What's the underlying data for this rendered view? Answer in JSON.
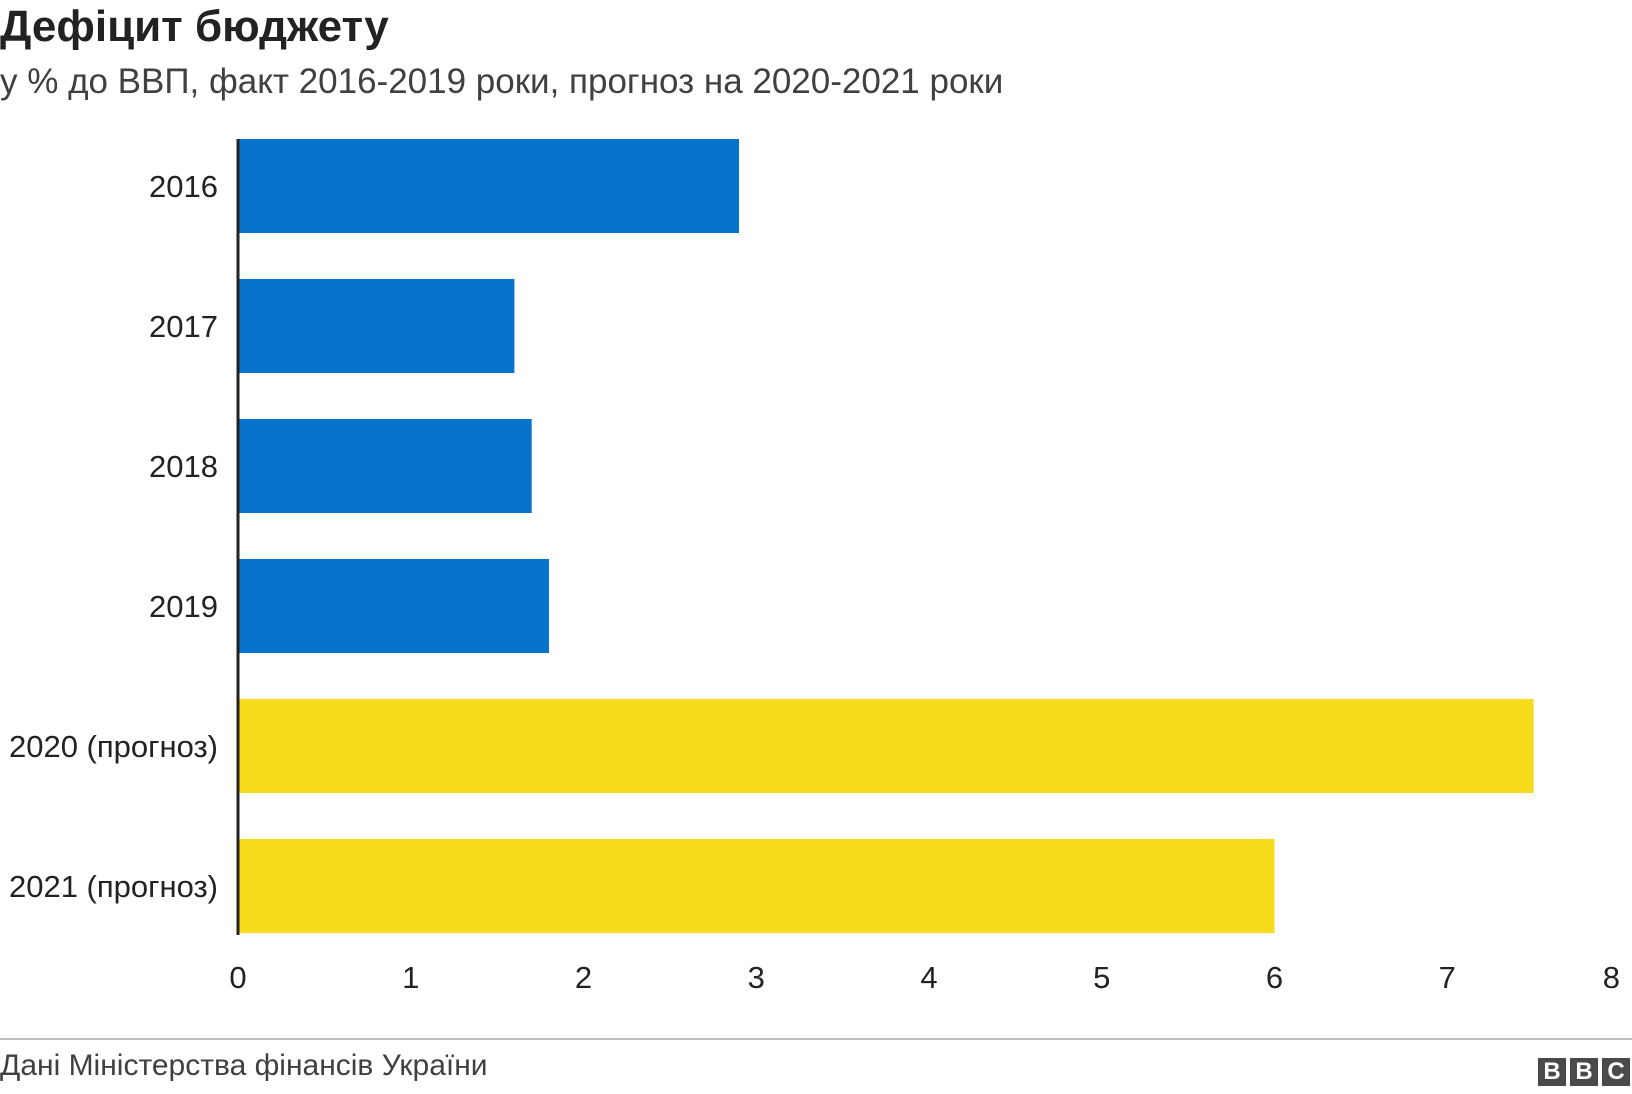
{
  "chart_data": {
    "type": "bar",
    "orientation": "horizontal",
    "title": "Дефіцит бюджету",
    "subtitle": "у % до ВВП, факт 2016-2019 роки, прогноз на 2020-2021 роки",
    "categories": [
      "2016",
      "2017",
      "2018",
      "2019",
      "2020 (прогноз)",
      "2021 (прогноз)"
    ],
    "values": [
      2.9,
      1.6,
      1.7,
      1.8,
      7.5,
      6.0
    ],
    "bar_colors": [
      "#0672c9",
      "#0672c9",
      "#0672c9",
      "#0672c9",
      "#f6db1a",
      "#f6db1a"
    ],
    "xlim": [
      0,
      8
    ],
    "xticks": [
      "0",
      "1",
      "2",
      "3",
      "4",
      "5",
      "6",
      "7",
      "8"
    ],
    "xlabel": "",
    "ylabel": "",
    "grid": false,
    "legend": "none"
  },
  "footer": {
    "source": "Дані Міністерства фінансів України",
    "logo_letters": [
      "B",
      "B",
      "C"
    ]
  }
}
